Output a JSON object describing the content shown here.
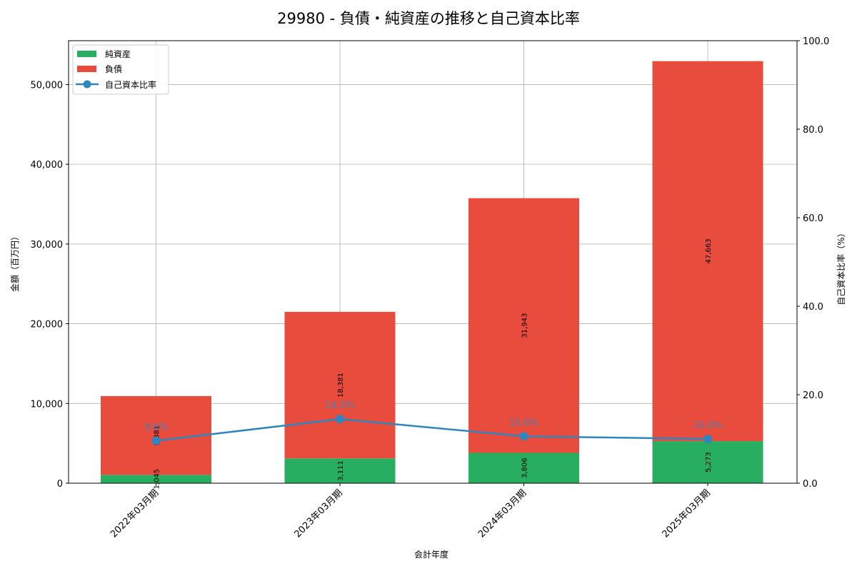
{
  "chart_data": {
    "type": "bar",
    "stacked": true,
    "title": "29980 - 負債・純資産の推移と自己資本比率",
    "xlabel": "会計年度",
    "ylabel": "金額（百万円）",
    "ylabel_right": "自己資本比率（%）",
    "categories": [
      "2022年03月期",
      "2023年03月期",
      "2024年03月期",
      "2025年03月期"
    ],
    "series": [
      {
        "name": "純資産",
        "type": "bar",
        "color": "#27ae60",
        "values": [
          1045,
          3111,
          3806,
          5273
        ],
        "labels": [
          "1,045",
          "3,111",
          "3,806",
          "5,273"
        ]
      },
      {
        "name": "負債",
        "type": "bar",
        "color": "#e74c3c",
        "values": [
          9881,
          18381,
          31943,
          47663
        ],
        "labels": [
          "9,881",
          "18,381",
          "31,943",
          "47,663"
        ]
      },
      {
        "name": "自己資本比率",
        "type": "line",
        "axis": "right",
        "color": "#2e86c1",
        "values": [
          9.6,
          14.5,
          10.6,
          10.0
        ],
        "labels": [
          "9.6%",
          "14.5%",
          "10.6%",
          "10.0%"
        ]
      }
    ],
    "ylim": [
      0,
      55500
    ],
    "yticks": [
      0,
      10000,
      20000,
      30000,
      40000,
      50000
    ],
    "ytick_labels": [
      "0",
      "10,000",
      "20,000",
      "30,000",
      "40,000",
      "50,000"
    ],
    "ylim_right": [
      0,
      100
    ],
    "yticks_right": [
      0,
      20,
      40,
      60,
      80,
      100
    ],
    "ytick_labels_right": [
      "0.0",
      "20.0",
      "40.0",
      "60.0",
      "80.0",
      "100.0"
    ],
    "grid": true,
    "legend_position": "upper left"
  }
}
